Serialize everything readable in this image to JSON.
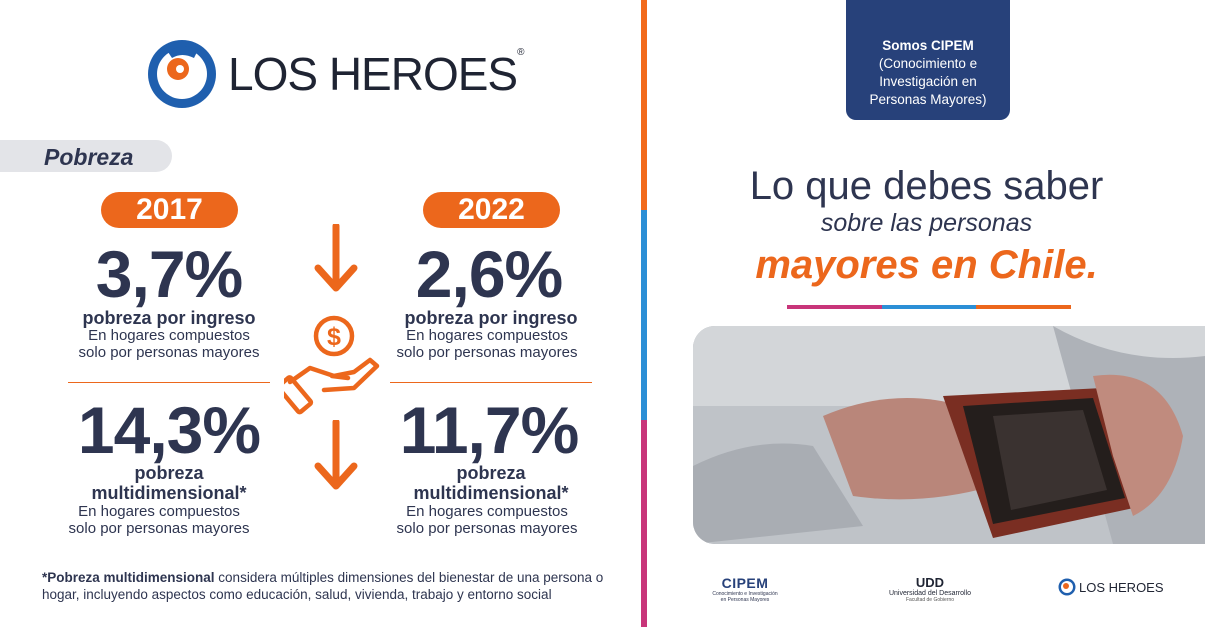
{
  "brand": {
    "name": "LOS HEROES",
    "registered": "®"
  },
  "section": {
    "label": "Pobreza"
  },
  "years": {
    "left": "2017",
    "right": "2022"
  },
  "stats": {
    "left": [
      {
        "value": "3,7%",
        "label_lines": [
          "pobreza por ingreso"
        ],
        "sub_lines": [
          "En hogares compuestos",
          "solo por personas mayores"
        ]
      },
      {
        "value": "14,3%",
        "label_lines": [
          "pobreza",
          "multidimensional*"
        ],
        "sub_lines": [
          "En hogares compuestos",
          "solo por personas mayores"
        ]
      }
    ],
    "right": [
      {
        "value": "2,6%",
        "label_lines": [
          "pobreza por ingreso"
        ],
        "sub_lines": [
          "En hogares compuestos",
          "solo por personas mayores"
        ]
      },
      {
        "value": "11,7%",
        "label_lines": [
          "pobreza",
          "multidimensional*"
        ],
        "sub_lines": [
          "En hogares compuestos",
          "solo por personas mayores"
        ]
      }
    ]
  },
  "footnote": {
    "bold": "*Pobreza multidimensional",
    "text": " considera múltiples dimensiones del bienestar de una persona o hogar, incluyendo aspectos como educación, salud, vivienda, trabajo y entorno social"
  },
  "badge": {
    "title": "Somos CIPEM",
    "lines": [
      "(Conocimiento e",
      "Investigación en",
      "Personas Mayores)"
    ]
  },
  "headline": {
    "line1": "Lo que debes saber",
    "line2": "sobre las personas",
    "line3": "mayores en Chile."
  },
  "partners": {
    "cipem": {
      "name": "CIPEM",
      "tagline_lines": [
        "Conocimiento e Investigación",
        "en Personas Mayores"
      ]
    },
    "udd": {
      "mark": "UDD",
      "name": "Universidad del Desarrollo",
      "tagline": "Facultad de Gobierno"
    },
    "losheroes": {
      "name": "LOS HEROES"
    }
  },
  "colors": {
    "orange": "#ec671c",
    "navy": "#2e3550",
    "blue": "#2b8fd6",
    "magenta": "#c8357a",
    "badge": "#27417a"
  },
  "icons": [
    "down-arrow-icon",
    "hand-coin-icon",
    "photo-hands-wallet"
  ]
}
